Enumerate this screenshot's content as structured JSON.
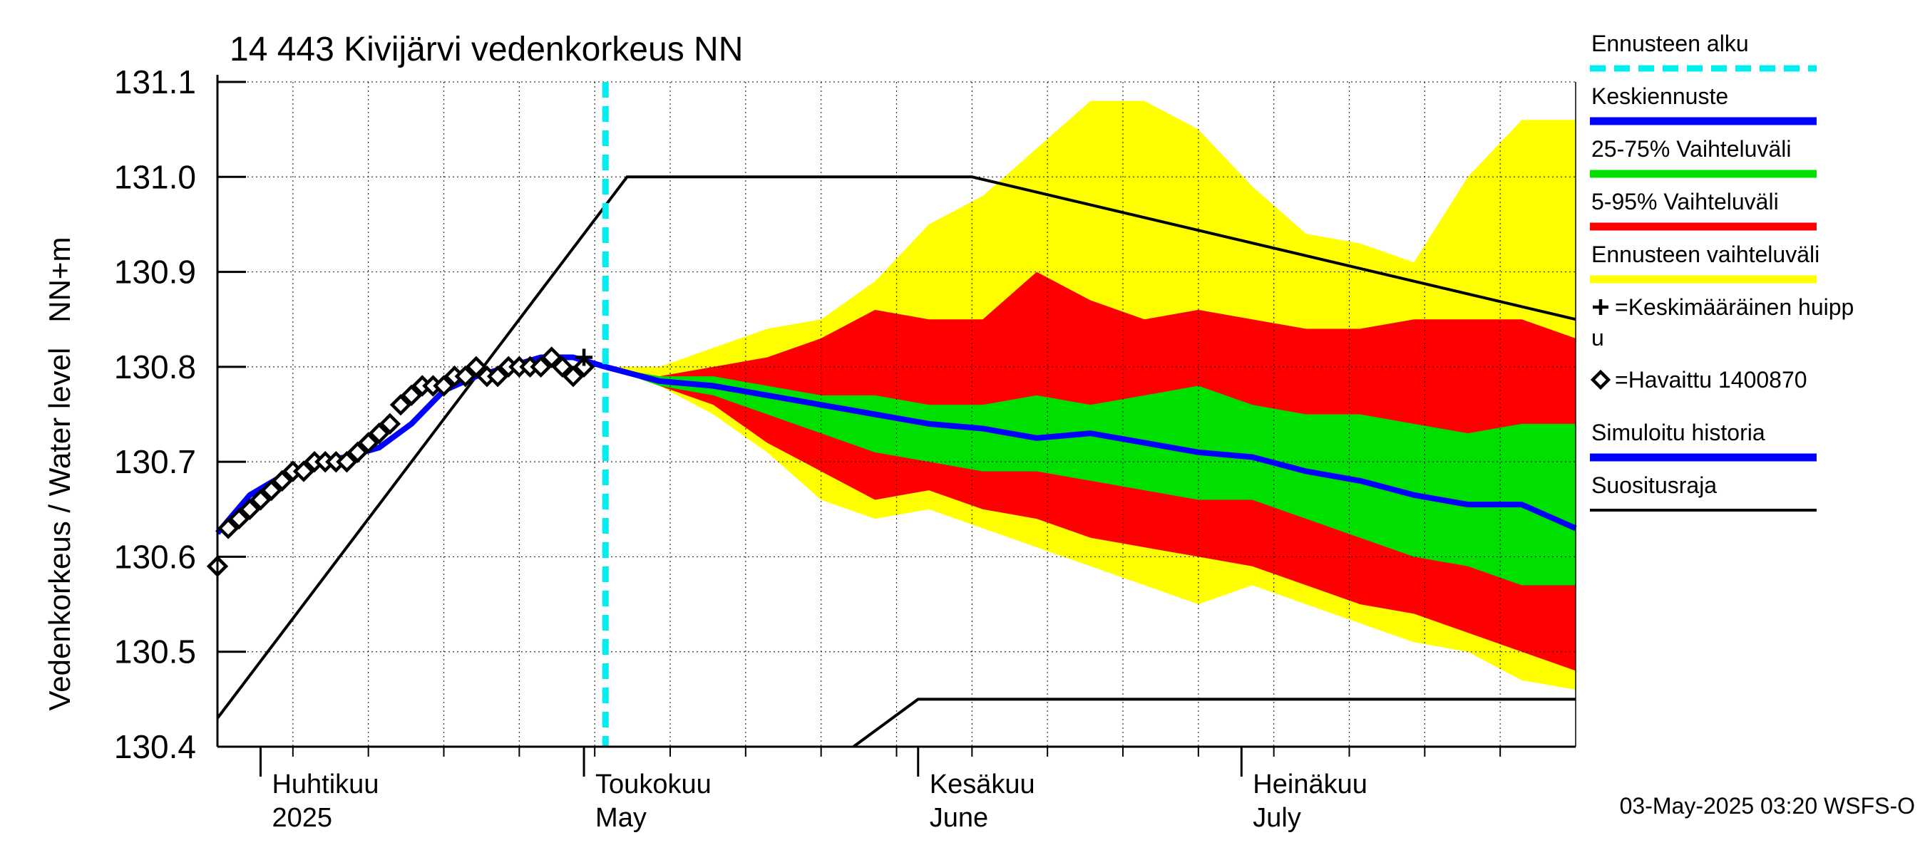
{
  "chart_data": {
    "type": "area",
    "title": "14 443 Kivijärvi vedenkorkeus NN",
    "ylabel": "Vedenkorkeus / Water level   NN+m",
    "ylim": [
      130.4,
      131.1
    ],
    "yticks": [
      130.4,
      130.5,
      130.6,
      130.7,
      130.8,
      130.9,
      131.0,
      131.1
    ],
    "xlim": [
      "2025-03-28",
      "2025-08-01"
    ],
    "month_labels": [
      {
        "date": "2025-04-01",
        "fi": "Huhtikuu",
        "en": "2025"
      },
      {
        "date": "2025-05-01",
        "fi": "Toukokuu",
        "en": "May"
      },
      {
        "date": "2025-06-01",
        "fi": "Kesäkuu",
        "en": "June"
      },
      {
        "date": "2025-07-01",
        "fi": "Heinäkuu",
        "en": "July"
      }
    ],
    "forecast_start": "2025-05-03",
    "series": [
      {
        "name": "Ennusteen vaihteluväli",
        "color": "#ffff00",
        "x": [
          "2025-05-03",
          "2025-05-08",
          "2025-05-13",
          "2025-05-18",
          "2025-05-23",
          "2025-05-28",
          "2025-06-02",
          "2025-06-07",
          "2025-06-12",
          "2025-06-17",
          "2025-06-22",
          "2025-06-27",
          "2025-07-02",
          "2025-07-07",
          "2025-07-12",
          "2025-07-17",
          "2025-07-22",
          "2025-07-27",
          "2025-08-01"
        ],
        "upper": [
          130.8,
          130.8,
          130.82,
          130.84,
          130.85,
          130.89,
          130.95,
          130.98,
          131.03,
          131.08,
          131.08,
          131.05,
          130.99,
          130.94,
          130.93,
          130.91,
          131.0,
          131.06,
          131.06
        ],
        "lower": [
          130.8,
          130.78,
          130.75,
          130.71,
          130.66,
          130.64,
          130.65,
          130.63,
          130.61,
          130.59,
          130.57,
          130.55,
          130.57,
          130.55,
          130.53,
          130.51,
          130.5,
          130.47,
          130.46
        ]
      },
      {
        "name": "5-95% Vaihteluväli",
        "color": "#ff0000",
        "x": [
          "2025-05-03",
          "2025-05-08",
          "2025-05-13",
          "2025-05-18",
          "2025-05-23",
          "2025-05-28",
          "2025-06-02",
          "2025-06-07",
          "2025-06-12",
          "2025-06-17",
          "2025-06-22",
          "2025-06-27",
          "2025-07-02",
          "2025-07-07",
          "2025-07-12",
          "2025-07-17",
          "2025-07-22",
          "2025-07-27",
          "2025-08-01"
        ],
        "upper": [
          130.8,
          130.79,
          130.8,
          130.81,
          130.83,
          130.86,
          130.85,
          130.85,
          130.9,
          130.87,
          130.85,
          130.86,
          130.85,
          130.84,
          130.84,
          130.85,
          130.85,
          130.85,
          130.83
        ],
        "lower": [
          130.8,
          130.78,
          130.76,
          130.72,
          130.69,
          130.66,
          130.67,
          130.65,
          130.64,
          130.62,
          130.61,
          130.6,
          130.59,
          130.57,
          130.55,
          130.54,
          130.52,
          130.5,
          130.48
        ]
      },
      {
        "name": "25-75% Vaihteluväli",
        "color": "#00e000",
        "x": [
          "2025-05-03",
          "2025-05-08",
          "2025-05-13",
          "2025-05-18",
          "2025-05-23",
          "2025-05-28",
          "2025-06-02",
          "2025-06-07",
          "2025-06-12",
          "2025-06-17",
          "2025-06-22",
          "2025-06-27",
          "2025-07-02",
          "2025-07-07",
          "2025-07-12",
          "2025-07-17",
          "2025-07-22",
          "2025-07-27",
          "2025-08-01"
        ],
        "upper": [
          130.8,
          130.79,
          130.79,
          130.78,
          130.77,
          130.77,
          130.76,
          130.76,
          130.77,
          130.76,
          130.77,
          130.78,
          130.76,
          130.75,
          130.75,
          130.74,
          130.73,
          130.74,
          130.74
        ],
        "lower": [
          130.8,
          130.78,
          130.77,
          130.75,
          130.73,
          130.71,
          130.7,
          130.69,
          130.69,
          130.68,
          130.67,
          130.66,
          130.66,
          130.64,
          130.62,
          130.6,
          130.59,
          130.57,
          130.57
        ]
      },
      {
        "name": "Keskiennuste",
        "color": "#0000ff",
        "x": [
          "2025-05-03",
          "2025-05-08",
          "2025-05-13",
          "2025-05-18",
          "2025-05-23",
          "2025-05-28",
          "2025-06-02",
          "2025-06-07",
          "2025-06-12",
          "2025-06-17",
          "2025-06-22",
          "2025-06-27",
          "2025-07-02",
          "2025-07-07",
          "2025-07-12",
          "2025-07-17",
          "2025-07-22",
          "2025-07-27",
          "2025-08-01"
        ],
        "y": [
          130.8,
          130.785,
          130.78,
          130.77,
          130.76,
          130.75,
          130.74,
          130.735,
          130.725,
          130.73,
          130.72,
          130.71,
          130.705,
          130.69,
          130.68,
          130.665,
          130.655,
          130.655,
          130.63
        ]
      },
      {
        "name": "Simuloitu historia",
        "color": "#0000ff",
        "x": [
          "2025-03-28",
          "2025-03-31",
          "2025-04-03",
          "2025-04-06",
          "2025-04-09",
          "2025-04-12",
          "2025-04-15",
          "2025-04-18",
          "2025-04-21",
          "2025-04-24",
          "2025-04-27",
          "2025-04-30",
          "2025-05-03"
        ],
        "y": [
          130.625,
          130.665,
          130.685,
          130.7,
          130.705,
          130.715,
          130.74,
          130.775,
          130.79,
          130.8,
          130.81,
          130.81,
          130.8
        ]
      },
      {
        "name": "=Havaittu 1400870",
        "color": "#000000",
        "x": [
          "2025-03-28",
          "2025-03-29",
          "2025-03-30",
          "2025-03-31",
          "2025-04-01",
          "2025-04-02",
          "2025-04-03",
          "2025-04-04",
          "2025-04-05",
          "2025-04-06",
          "2025-04-07",
          "2025-04-08",
          "2025-04-09",
          "2025-04-10",
          "2025-04-11",
          "2025-04-12",
          "2025-04-13",
          "2025-04-14",
          "2025-04-15",
          "2025-04-16",
          "2025-04-17",
          "2025-04-18",
          "2025-04-19",
          "2025-04-20",
          "2025-04-21",
          "2025-04-22",
          "2025-04-23",
          "2025-04-24",
          "2025-04-25",
          "2025-04-26",
          "2025-04-27",
          "2025-04-28",
          "2025-04-29",
          "2025-04-30",
          "2025-05-01"
        ],
        "y": [
          130.59,
          130.63,
          130.64,
          130.65,
          130.66,
          130.67,
          130.68,
          130.69,
          130.69,
          130.7,
          130.7,
          130.7,
          130.7,
          130.71,
          130.72,
          130.73,
          130.74,
          130.76,
          130.77,
          130.78,
          130.78,
          130.78,
          130.79,
          130.79,
          130.8,
          130.79,
          130.79,
          130.8,
          130.8,
          130.8,
          130.8,
          130.81,
          130.8,
          130.79,
          130.8
        ]
      },
      {
        "name": "Suositusraja",
        "color": "#000000",
        "x": [
          "2025-03-28",
          "2025-05-05",
          "2025-06-06",
          "2025-08-01"
        ],
        "y": [
          130.43,
          131.0,
          131.0,
          130.85
        ]
      },
      {
        "name": "",
        "color": "#000000",
        "x": [
          "2025-05-26",
          "2025-06-01",
          "2025-08-01"
        ],
        "y": [
          130.4,
          130.45,
          130.45
        ]
      }
    ],
    "peak_marker": {
      "name": "=Keskimääräinen huippu",
      "x": "2025-05-01",
      "y": 130.81
    },
    "legend_position": "right",
    "legend": [
      {
        "label": "Ennusteen alku",
        "color": "#00eeee",
        "style": "dashed"
      },
      {
        "label": "Keskiennuste",
        "color": "#0000ff",
        "style": "solid"
      },
      {
        "label": "25-75% Vaihteluväli",
        "color": "#00e000",
        "style": "band"
      },
      {
        "label": "5-95% Vaihteluväli",
        "color": "#ff0000",
        "style": "band"
      },
      {
        "label": "Ennusteen vaihteluväli",
        "color": "#ffff00",
        "style": "band"
      },
      {
        "label": "=Keskimääräinen huipp",
        "label2": "u",
        "color": "#000000",
        "style": "plus"
      },
      {
        "label": "=Havaittu 1400870",
        "color": "#000000",
        "style": "diamond"
      },
      {
        "label": "Simuloitu historia",
        "color": "#0000ff",
        "style": "solid"
      },
      {
        "label": "Suositusraja",
        "color": "#000000",
        "style": "thin"
      }
    ],
    "grid": true,
    "footer": "03-May-2025 03:20 WSFS-O"
  }
}
